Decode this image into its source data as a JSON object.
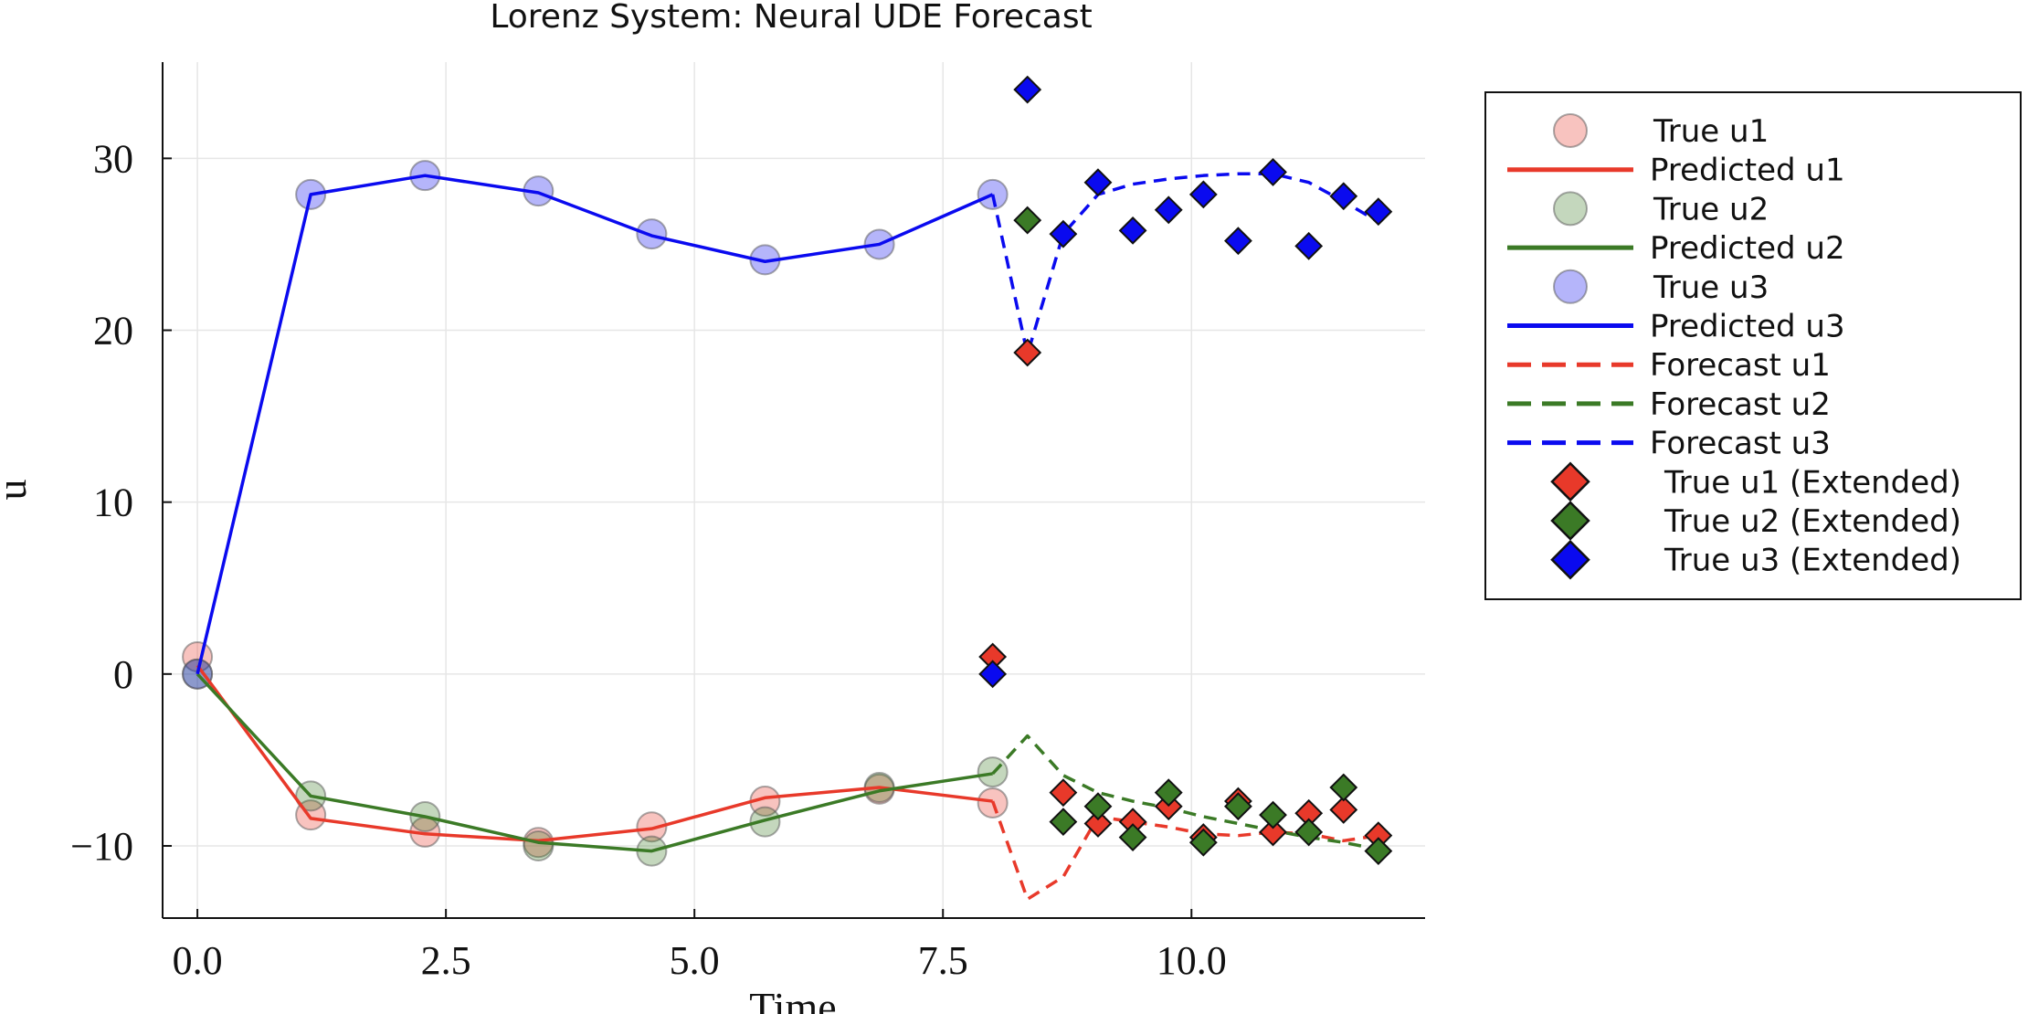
{
  "chart_data": {
    "type": "line",
    "title": "Lorenz System: Neural UDE Forecast",
    "xlabel": "Time",
    "ylabel": "u",
    "xlim": [
      -0.35,
      12.35
    ],
    "ylim": [
      -14.2,
      35.6
    ],
    "xticks": [
      0.0,
      2.5,
      5.0,
      7.5,
      10.0
    ],
    "xtick_labels": [
      "0.0",
      "2.5",
      "5.0",
      "7.5",
      "10.0"
    ],
    "yticks": [
      -10,
      0,
      10,
      20,
      30
    ],
    "ytick_labels": [
      "−10",
      "0",
      "10",
      "20",
      "30"
    ],
    "grid": true,
    "legend_position": "outside-right-top",
    "colors": {
      "u1": "#e8392a",
      "u2": "#3b7a26",
      "u3": "#0a0aef"
    },
    "series": [
      {
        "name": "True u1",
        "kind": "scatter",
        "color_key": "u1",
        "x": [
          0.0,
          1.14,
          2.29,
          3.43,
          4.57,
          5.71,
          6.86,
          8.0
        ],
        "y": [
          1.0,
          -8.2,
          -9.2,
          -9.8,
          -8.9,
          -7.4,
          -6.7,
          -7.5
        ]
      },
      {
        "name": "Predicted u1",
        "kind": "line",
        "color_key": "u1",
        "x": [
          0.0,
          1.14,
          2.29,
          3.43,
          4.57,
          5.71,
          6.86,
          8.0
        ],
        "y": [
          0.5,
          -8.4,
          -9.3,
          -9.7,
          -9.0,
          -7.2,
          -6.6,
          -7.4
        ]
      },
      {
        "name": "True u2",
        "kind": "scatter",
        "color_key": "u2",
        "x": [
          0.0,
          1.14,
          2.29,
          3.43,
          4.57,
          5.71,
          6.86,
          8.0
        ],
        "y": [
          0.0,
          -7.1,
          -8.3,
          -10.0,
          -10.3,
          -8.6,
          -6.6,
          -5.7
        ]
      },
      {
        "name": "Predicted u2",
        "kind": "line",
        "color_key": "u2",
        "x": [
          0.0,
          1.14,
          2.29,
          3.43,
          4.57,
          5.71,
          6.86,
          8.0
        ],
        "y": [
          0.0,
          -7.1,
          -8.3,
          -9.8,
          -10.3,
          -8.5,
          -6.8,
          -5.8
        ]
      },
      {
        "name": "True u3",
        "kind": "scatter",
        "color_key": "u3",
        "x": [
          0.0,
          1.14,
          2.29,
          3.43,
          4.57,
          5.71,
          6.86,
          8.0
        ],
        "y": [
          0.0,
          27.9,
          29.0,
          28.1,
          25.6,
          24.1,
          25.0,
          27.9
        ]
      },
      {
        "name": "Predicted u3",
        "kind": "line",
        "color_key": "u3",
        "x": [
          0.0,
          1.14,
          2.29,
          3.43,
          4.57,
          5.71,
          6.86,
          8.0
        ],
        "y": [
          0.0,
          27.9,
          29.0,
          28.0,
          25.5,
          24.0,
          25.0,
          27.9
        ]
      },
      {
        "name": "Forecast u1",
        "kind": "dashed",
        "color_key": "u1",
        "x": [
          8.0,
          8.35,
          8.71,
          9.06,
          9.41,
          9.77,
          10.12,
          10.47,
          10.82,
          11.18,
          11.53,
          11.88
        ],
        "y": [
          -7.4,
          -13.1,
          -11.8,
          -8.3,
          -8.6,
          -8.9,
          -9.3,
          -9.4,
          -9.2,
          -9.3,
          -9.7,
          -9.4
        ]
      },
      {
        "name": "Forecast u2",
        "kind": "dashed",
        "color_key": "u2",
        "x": [
          8.0,
          8.35,
          8.71,
          9.06,
          9.41,
          9.77,
          10.12,
          10.47,
          10.82,
          11.18,
          11.53,
          11.88
        ],
        "y": [
          -5.8,
          -3.6,
          -5.9,
          -6.9,
          -7.4,
          -7.8,
          -8.3,
          -8.7,
          -9.1,
          -9.5,
          -9.8,
          -10.2
        ]
      },
      {
        "name": "Forecast u3",
        "kind": "dashed",
        "color_key": "u3",
        "x": [
          8.0,
          8.35,
          8.71,
          9.06,
          9.41,
          9.77,
          10.12,
          10.47,
          10.82,
          11.18,
          11.53,
          11.88
        ],
        "y": [
          27.9,
          18.6,
          25.6,
          27.9,
          28.5,
          28.8,
          29.0,
          29.1,
          29.1,
          28.6,
          27.5,
          26.3
        ]
      },
      {
        "name": "True u1 (Extended)",
        "kind": "diamond",
        "color_key": "u1",
        "x": [
          8.0,
          8.35,
          8.71,
          9.06,
          9.41,
          9.77,
          10.12,
          10.47,
          10.82,
          11.18,
          11.53,
          11.88
        ],
        "y": [
          1.0,
          18.7,
          -6.9,
          -8.7,
          -8.6,
          -7.7,
          -9.5,
          -7.4,
          -9.2,
          -8.1,
          -7.9,
          -9.4
        ]
      },
      {
        "name": "True u2 (Extended)",
        "kind": "diamond",
        "color_key": "u2",
        "x": [
          8.35,
          8.71,
          9.06,
          9.41,
          9.77,
          10.12,
          10.47,
          10.82,
          11.18,
          11.53,
          11.88
        ],
        "y": [
          26.4,
          -8.6,
          -7.7,
          -9.5,
          -6.9,
          -9.8,
          -7.7,
          -8.2,
          -9.2,
          -6.6,
          -10.3
        ]
      },
      {
        "name": "True u3 (Extended)",
        "kind": "diamond",
        "color_key": "u3",
        "x": [
          8.0,
          8.35,
          8.71,
          9.06,
          9.41,
          9.77,
          10.12,
          10.47,
          10.82,
          11.18,
          11.53,
          11.88
        ],
        "y": [
          0.0,
          34.0,
          25.6,
          28.6,
          25.8,
          27.0,
          27.9,
          25.2,
          29.2,
          24.9,
          27.8,
          26.9
        ]
      }
    ]
  }
}
